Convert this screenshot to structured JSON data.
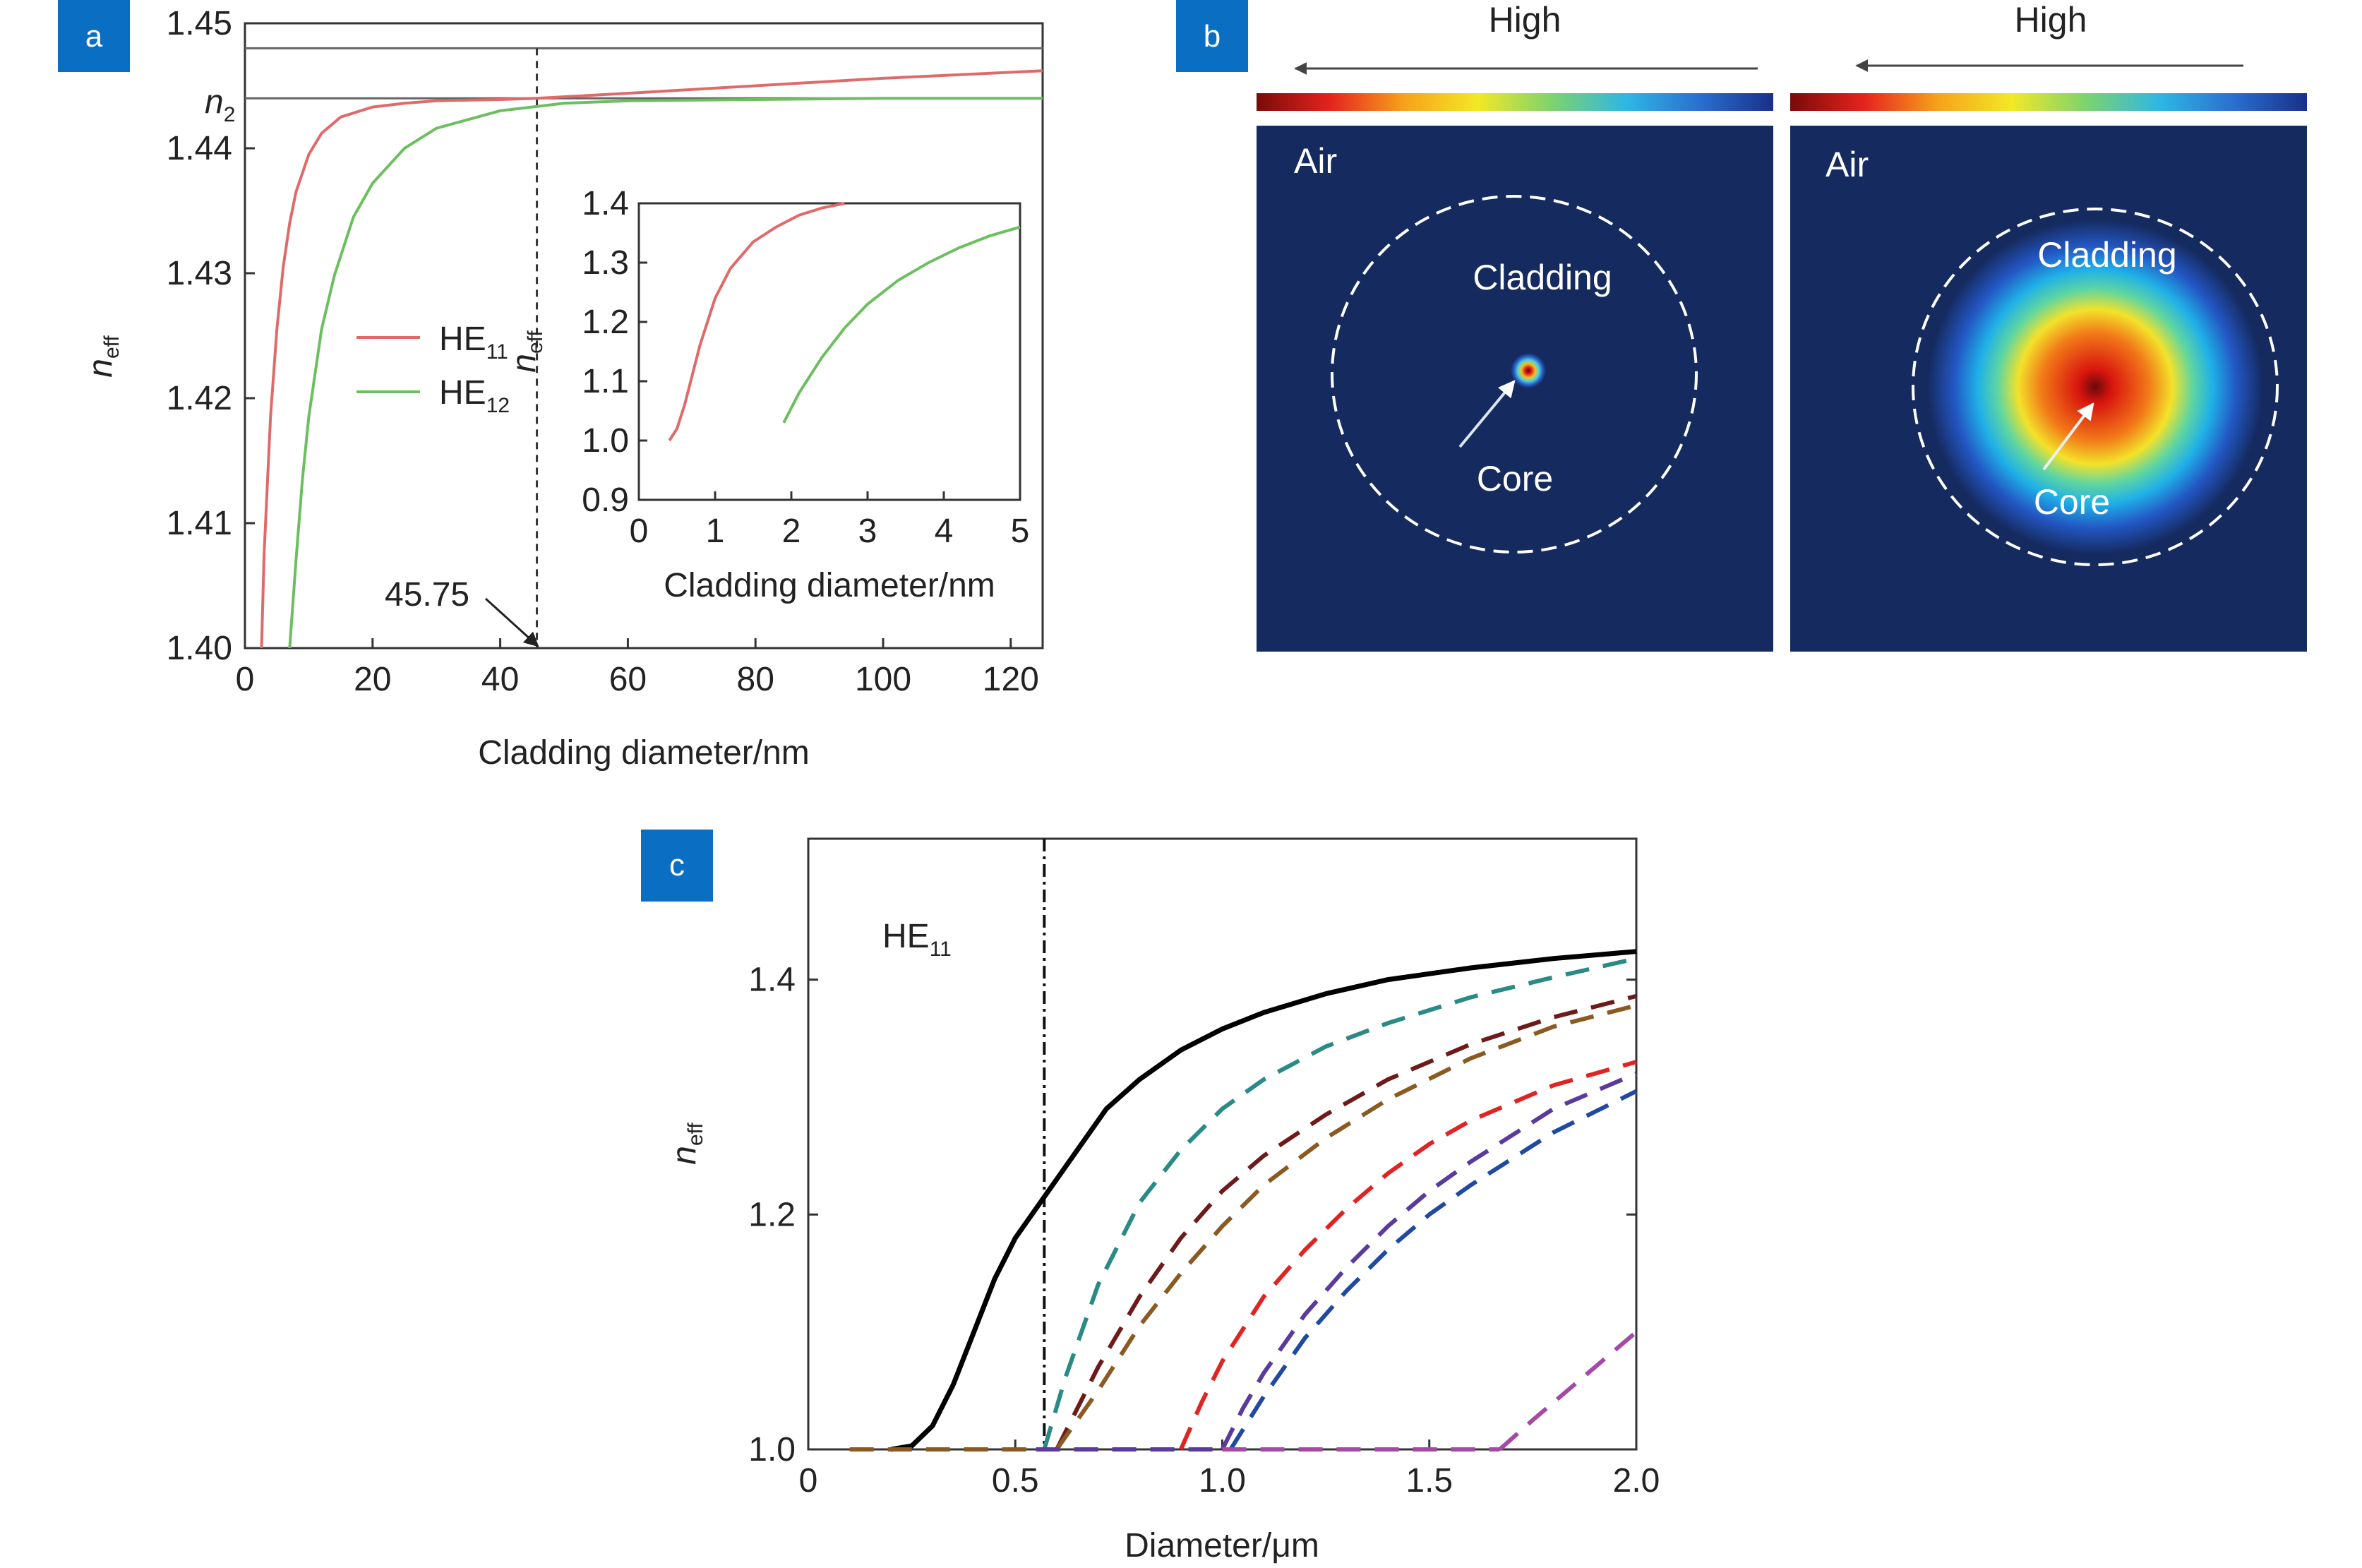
{
  "panels": {
    "a": {
      "tag": "a",
      "chart_data": {
        "type": "line",
        "xlabel": "Cladding  diameter/nm",
        "ylabel_base": "n",
        "ylabel_sub": "eff",
        "xlim": [
          0,
          125
        ],
        "ylim": [
          1.4,
          1.45
        ],
        "xticks": [
          "0",
          "20",
          "40",
          "60",
          "80",
          "100",
          "120"
        ],
        "yticks": [
          "1.40",
          "1.41",
          "1.42",
          "1.43",
          "1.44",
          "1.45"
        ],
        "n2_label_base": "n",
        "n2_label_sub": "2",
        "n2_value": 1.444,
        "upper_line_value": 1.448,
        "marker_value": 45.75,
        "marker_label": "45.75",
        "legend_position": "center-left",
        "series": [
          {
            "name_base": "HE",
            "name_sub": "11",
            "color": "#e06a6a",
            "x": [
              2.6,
              3,
              4,
              5,
              6,
              7,
              8,
              10,
              12,
              15,
              20,
              25,
              30,
              40,
              45.75,
              60,
              80,
              100,
              125
            ],
            "y": [
              1.4,
              1.4075,
              1.4185,
              1.4255,
              1.4305,
              1.434,
              1.4365,
              1.4395,
              1.4412,
              1.4425,
              1.4433,
              1.4436,
              1.4438,
              1.4439,
              1.444,
              1.4444,
              1.445,
              1.4456,
              1.4462
            ]
          },
          {
            "name_base": "HE",
            "name_sub": "12",
            "color": "#6cbf5e",
            "x": [
              7,
              8,
              9,
              10,
              12,
              14,
              17,
              20,
              25,
              30,
              40,
              50,
              60,
              80,
              100,
              125
            ],
            "y": [
              1.4,
              1.407,
              1.4135,
              1.4185,
              1.4255,
              1.4298,
              1.4345,
              1.4372,
              1.44,
              1.4416,
              1.443,
              1.4436,
              1.4438,
              1.4439,
              1.444,
              1.444
            ]
          }
        ],
        "inset": {
          "xlabel": "Cladding  diameter/nm",
          "ylabel_base": "n",
          "ylabel_sub": "eff",
          "xlim": [
            0,
            5
          ],
          "ylim": [
            0.9,
            1.4
          ],
          "xticks": [
            "0",
            "1",
            "2",
            "3",
            "4",
            "5"
          ],
          "yticks": [
            "0.9",
            "1.0",
            "1.1",
            "1.2",
            "1.3",
            "1.4"
          ],
          "series": [
            {
              "color": "#e06a6a",
              "x": [
                0.4,
                0.5,
                0.6,
                0.7,
                0.8,
                1.0,
                1.2,
                1.5,
                1.8,
                2.1,
                2.4,
                2.7
              ],
              "y": [
                1.0,
                1.02,
                1.06,
                1.11,
                1.16,
                1.24,
                1.29,
                1.335,
                1.36,
                1.38,
                1.392,
                1.4
              ]
            },
            {
              "color": "#6cbf5e",
              "x": [
                1.9,
                2.1,
                2.4,
                2.7,
                3.0,
                3.4,
                3.8,
                4.2,
                4.6,
                5.0
              ],
              "y": [
                1.03,
                1.08,
                1.14,
                1.19,
                1.23,
                1.27,
                1.3,
                1.325,
                1.345,
                1.36
              ]
            }
          ]
        }
      }
    },
    "b": {
      "tag": "b",
      "maps": [
        {
          "high_label": "High",
          "air_label": "Air",
          "cladding_label": "Cladding",
          "core_label": "Core",
          "field_extent": "small"
        },
        {
          "high_label": "High",
          "air_label": "Air",
          "cladding_label": "Cladding",
          "core_label": "Core",
          "field_extent": "large"
        }
      ],
      "colorbar_colors": [
        "#7a0a0a",
        "#e8221c",
        "#f7a21b",
        "#f3e826",
        "#7dd36e",
        "#2fb7e4",
        "#2a6fd1",
        "#1a2f8a"
      ],
      "background_color": "#152a5e"
    },
    "c": {
      "tag": "c",
      "chart_data": {
        "type": "line",
        "xlabel": "Diameter/μm",
        "ylabel_base": "n",
        "ylabel_sub": "eff",
        "xlim": [
          0,
          2.0
        ],
        "ylim": [
          1.0,
          1.52
        ],
        "xticks": [
          "0",
          "0.5",
          "1.0",
          "1.5",
          "2.0"
        ],
        "xtick_values": [
          0,
          0.5,
          1.0,
          1.5,
          2.0
        ],
        "yticks": [
          "1.0",
          "1.2",
          "1.4"
        ],
        "ytick_values": [
          1.0,
          1.2,
          1.4
        ],
        "annotation_base": "HE",
        "annotation_sub": "11",
        "cutoff_value": 0.57,
        "series": [
          {
            "style": "solid",
            "color": "#000000",
            "x": [
              0.2,
              0.25,
              0.3,
              0.35,
              0.4,
              0.45,
              0.5,
              0.57,
              0.65,
              0.72,
              0.8,
              0.9,
              1.0,
              1.1,
              1.25,
              1.4,
              1.6,
              1.8,
              2.0
            ],
            "y": [
              1.0,
              1.003,
              1.02,
              1.055,
              1.1,
              1.145,
              1.18,
              1.215,
              1.255,
              1.29,
              1.315,
              1.34,
              1.358,
              1.372,
              1.388,
              1.4,
              1.41,
              1.418,
              1.424
            ]
          },
          {
            "style": "dashed",
            "color": "#2a8a86",
            "x": [
              0.57,
              0.62,
              0.7,
              0.8,
              0.9,
              1.0,
              1.1,
              1.25,
              1.4,
              1.6,
              1.8,
              2.0
            ],
            "y": [
              1.0,
              1.06,
              1.14,
              1.21,
              1.255,
              1.29,
              1.315,
              1.343,
              1.363,
              1.385,
              1.402,
              1.418
            ]
          },
          {
            "style": "dashed",
            "color": "#6e1a1a",
            "x": [
              0.6,
              0.7,
              0.8,
              0.9,
              1.0,
              1.1,
              1.25,
              1.4,
              1.6,
              1.8,
              2.0
            ],
            "y": [
              1.0,
              1.07,
              1.13,
              1.18,
              1.22,
              1.25,
              1.285,
              1.315,
              1.345,
              1.368,
              1.386
            ]
          },
          {
            "style": "dashed",
            "color": "#8a5a22",
            "x": [
              0.6,
              0.7,
              0.8,
              0.9,
              1.0,
              1.1,
              1.25,
              1.4,
              1.6,
              1.8,
              2.0
            ],
            "y": [
              1.0,
              1.05,
              1.105,
              1.15,
              1.19,
              1.225,
              1.265,
              1.298,
              1.333,
              1.36,
              1.378
            ]
          },
          {
            "style": "dashed",
            "color": "#e02424",
            "x": [
              0.9,
              0.95,
              1.0,
              1.1,
              1.2,
              1.3,
              1.4,
              1.5,
              1.6,
              1.8,
              2.0
            ],
            "y": [
              1.0,
              1.04,
              1.075,
              1.13,
              1.17,
              1.205,
              1.235,
              1.26,
              1.28,
              1.31,
              1.33
            ]
          },
          {
            "style": "dashed",
            "color": "#5a3a9a",
            "x": [
              1.0,
              1.05,
              1.1,
              1.2,
              1.3,
              1.4,
              1.5,
              1.6,
              1.8,
              2.0
            ],
            "y": [
              1.0,
              1.035,
              1.065,
              1.115,
              1.155,
              1.19,
              1.22,
              1.245,
              1.29,
              1.32
            ]
          },
          {
            "style": "dashed",
            "color": "#1f4aa0",
            "x": [
              1.02,
              1.1,
              1.2,
              1.3,
              1.4,
              1.5,
              1.6,
              1.8,
              2.0
            ],
            "y": [
              1.0,
              1.045,
              1.095,
              1.135,
              1.17,
              1.2,
              1.225,
              1.27,
              1.305
            ]
          },
          {
            "style": "dashed",
            "color": "#a44aa4",
            "x": [
              1.67,
              1.75,
              1.85,
              1.95,
              2.0
            ],
            "y": [
              1.0,
              1.025,
              1.055,
              1.085,
              1.1
            ]
          },
          {
            "style": "dashed",
            "color": "#8a5a22",
            "x": [
              0.1,
              0.6
            ],
            "y": [
              1.0,
              1.0
            ]
          },
          {
            "style": "dashed",
            "color": "#5a3a9a",
            "x": [
              0.55,
              1.0
            ],
            "y": [
              1.0,
              1.0
            ]
          },
          {
            "style": "dashed",
            "color": "#a44aa4",
            "x": [
              1.0,
              1.67
            ],
            "y": [
              1.0,
              1.0
            ]
          }
        ]
      }
    }
  }
}
